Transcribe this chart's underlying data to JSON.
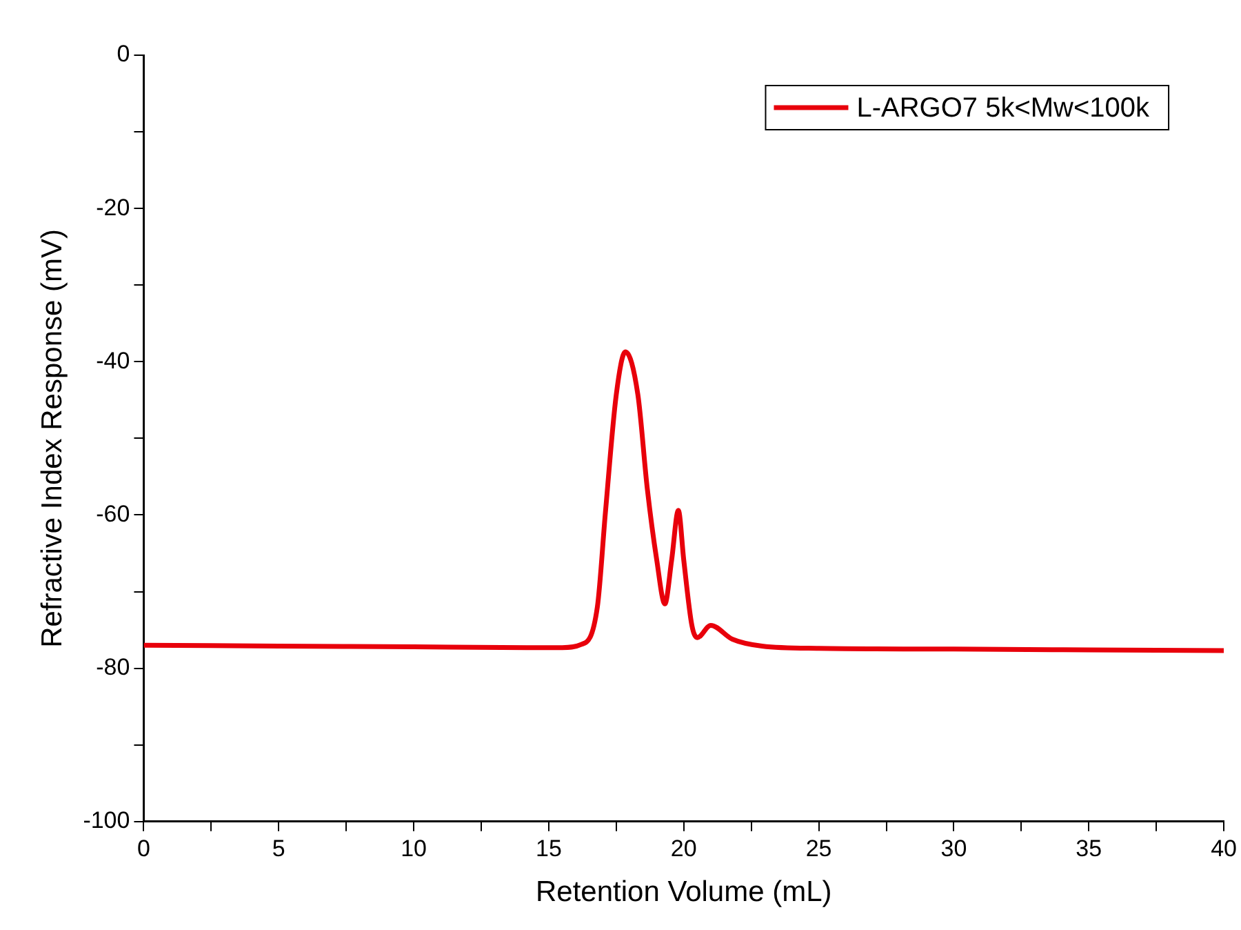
{
  "chart_data": {
    "type": "line",
    "xlabel": "Retention Volume (mL)",
    "ylabel": "Refractive Index Response (mV)",
    "xlim": [
      0,
      40
    ],
    "ylim": [
      -100,
      0
    ],
    "xticks": [
      0,
      {
        "value": 2.5,
        "label": null
      },
      5,
      {
        "value": 7.5,
        "label": null
      },
      10,
      {
        "value": 12.5,
        "label": null
      },
      15,
      {
        "value": 17.5,
        "label": null
      },
      20,
      {
        "value": 22.5,
        "label": null
      },
      25,
      {
        "value": 27.5,
        "label": null
      },
      30,
      {
        "value": 32.5,
        "label": null
      },
      35,
      {
        "value": 37.5,
        "label": null
      },
      40
    ],
    "yticks": [
      -100,
      {
        "value": -90,
        "label": null
      },
      -80,
      {
        "value": -70,
        "label": null
      },
      -60,
      {
        "value": -50,
        "label": null
      },
      -40,
      {
        "value": -30,
        "label": null
      },
      -20,
      {
        "value": -10,
        "label": null
      },
      0
    ],
    "grid": false,
    "legend": "top right",
    "marker": "none",
    "line_style": "solid",
    "series": [
      {
        "name": "L-ARGO7 5k<Mw<100k",
        "color": "#e8000b",
        "x": [
          0,
          5,
          10,
          14.4,
          15.5,
          16.2,
          16.8,
          17.1,
          17.5,
          17.84,
          18.3,
          18.65,
          19.0,
          19.3,
          19.55,
          19.8,
          20.0,
          20.3,
          20.5,
          21.0,
          21.8,
          22.9,
          25,
          30,
          35,
          40
        ],
        "values": [
          -77.0,
          -77.1,
          -77.2,
          -77.3,
          -77.3,
          -76.9,
          -72,
          -59.6,
          -44.3,
          -38.7,
          -44.3,
          -56.6,
          -65.9,
          -71.6,
          -65.9,
          -59.4,
          -65.9,
          -74.4,
          -76,
          -74.4,
          -76.2,
          -77.1,
          -77.4,
          -77.5,
          -77.6,
          -77.7
        ]
      }
    ]
  }
}
